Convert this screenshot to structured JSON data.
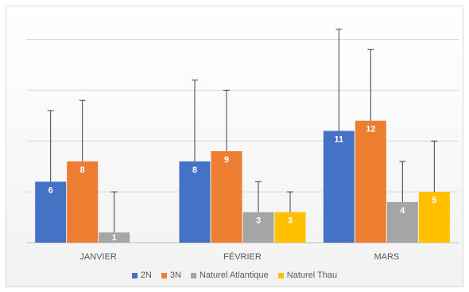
{
  "chart_data": {
    "type": "bar",
    "categories": [
      "JANVIER",
      "FÉVRIER",
      "MARS"
    ],
    "series": [
      {
        "name": "2N",
        "color": "#4472c4",
        "values": [
          6,
          8,
          11
        ],
        "error_high": [
          13,
          16,
          21
        ]
      },
      {
        "name": "3N",
        "color": "#ed7d31",
        "values": [
          8,
          9,
          12
        ],
        "error_high": [
          14,
          15,
          19
        ]
      },
      {
        "name": "Naturel Atlantique",
        "color": "#a5a5a5",
        "values": [
          1,
          3,
          4
        ],
        "error_high": [
          5,
          6,
          8
        ]
      },
      {
        "name": "Naturel Thau",
        "color": "#ffc000",
        "values": [
          null,
          3,
          5
        ],
        "error_high": [
          null,
          5,
          10
        ]
      }
    ],
    "ylim": [
      0,
      22
    ],
    "grid": true,
    "legend": "bottom"
  }
}
